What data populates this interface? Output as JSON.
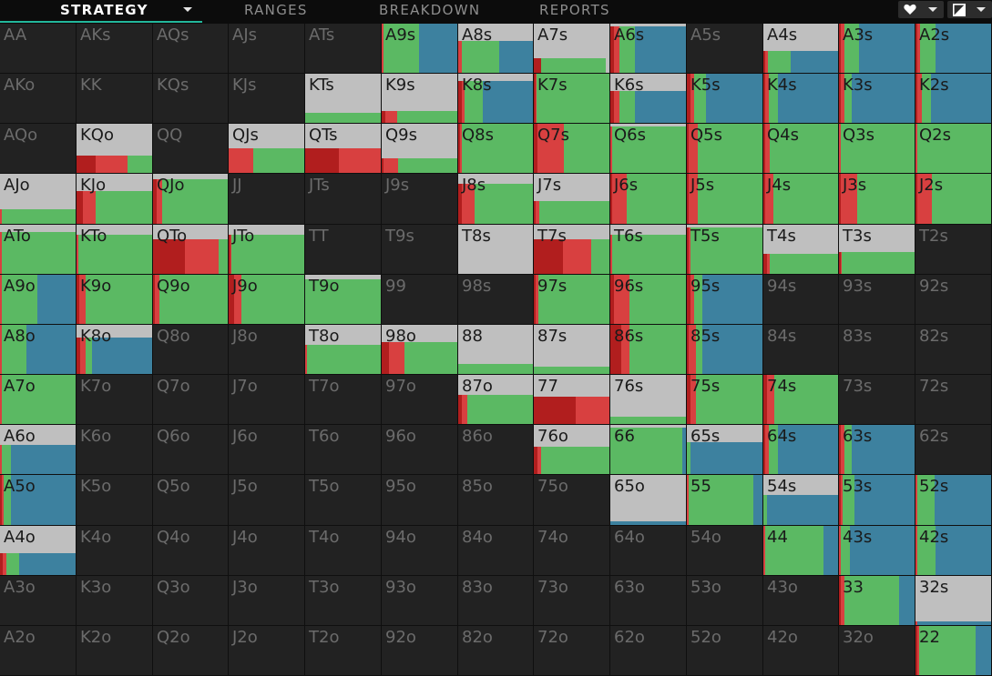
{
  "nav": {
    "tabs": [
      {
        "label": "STRATEGY",
        "active": true
      },
      {
        "label": "RANGES",
        "active": false
      },
      {
        "label": "BREAKDOWN",
        "active": false
      },
      {
        "label": "REPORTS",
        "active": false
      }
    ],
    "right_icons": [
      "heart-icon",
      "chevron-down-icon",
      "contrast-icon",
      "chevron-down-icon"
    ]
  },
  "colors": {
    "cell_bg": "#222222",
    "fold": "#bfbfbf",
    "check": "#5bb963",
    "bet_small": "#d84040",
    "bet_large": "#b11e1e",
    "bet_blue": "#3d819f",
    "label_dark": "#1a1a1a",
    "label_dim": "#6b6b6b"
  },
  "grid": {
    "rows": [
      [
        "AA",
        "AKs",
        "AQs",
        "AJs",
        "ATs",
        "A9s",
        "A8s",
        "A7s",
        "A6s",
        "A5s",
        "A4s",
        "A3s",
        "A2s"
      ],
      [
        "AKo",
        "KK",
        "KQs",
        "KJs",
        "KTs",
        "K9s",
        "K8s",
        "K7s",
        "K6s",
        "K5s",
        "K4s",
        "K3s",
        "K2s"
      ],
      [
        "AQo",
        "KQo",
        "QQ",
        "QJs",
        "QTs",
        "Q9s",
        "Q8s",
        "Q7s",
        "Q6s",
        "Q5s",
        "Q4s",
        "Q3s",
        "Q2s"
      ],
      [
        "AJo",
        "KJo",
        "QJo",
        "JJ",
        "JTs",
        "J9s",
        "J8s",
        "J7s",
        "J6s",
        "J5s",
        "J4s",
        "J3s",
        "J2s"
      ],
      [
        "ATo",
        "KTo",
        "QTo",
        "JTo",
        "TT",
        "T9s",
        "T8s",
        "T7s",
        "T6s",
        "T5s",
        "T4s",
        "T3s",
        "T2s"
      ],
      [
        "A9o",
        "K9o",
        "Q9o",
        "J9o",
        "T9o",
        "99",
        "98s",
        "97s",
        "96s",
        "95s",
        "94s",
        "93s",
        "92s"
      ],
      [
        "A8o",
        "K8o",
        "Q8o",
        "J8o",
        "T8o",
        "98o",
        "88",
        "87s",
        "86s",
        "85s",
        "84s",
        "83s",
        "82s"
      ],
      [
        "A7o",
        "K7o",
        "Q7o",
        "J7o",
        "T7o",
        "97o",
        "87o",
        "77",
        "76s",
        "75s",
        "74s",
        "73s",
        "72s"
      ],
      [
        "A6o",
        "K6o",
        "Q6o",
        "J6o",
        "T6o",
        "96o",
        "86o",
        "76o",
        "66",
        "65s",
        "64s",
        "63s",
        "62s"
      ],
      [
        "A5o",
        "K5o",
        "Q5o",
        "J5o",
        "T5o",
        "95o",
        "85o",
        "75o",
        "65o",
        "55",
        "54s",
        "53s",
        "52s"
      ],
      [
        "A4o",
        "K4o",
        "Q4o",
        "J4o",
        "T4o",
        "94o",
        "84o",
        "74o",
        "64o",
        "54o",
        "44",
        "43s",
        "42s"
      ],
      [
        "A3o",
        "K3o",
        "Q3o",
        "J3o",
        "T3o",
        "93o",
        "83o",
        "73o",
        "63o",
        "53o",
        "43o",
        "33",
        "32s"
      ],
      [
        "A2o",
        "K2o",
        "Q2o",
        "J2o",
        "T2o",
        "92o",
        "82o",
        "72o",
        "62o",
        "52o",
        "42o",
        "32o",
        "22"
      ]
    ],
    "strategies": {
      "A9s": [
        0.0,
        0.0,
        0.0,
        0.03,
        0.47,
        0.5
      ],
      "A8s": [
        0.35,
        0.0,
        0.0,
        0.05,
        0.5,
        0.45
      ],
      "A7s": [
        0.7,
        0.05,
        0.1,
        0.0,
        0.85,
        0.0
      ],
      "A6s": [
        0.05,
        0.05,
        0.05,
        0.07,
        0.2,
        0.68
      ],
      "A4s": [
        0.55,
        0.0,
        0.02,
        0.04,
        0.31,
        0.63
      ],
      "A3s": [
        0.0,
        0.0,
        0.02,
        0.05,
        0.2,
        0.73
      ],
      "A2s": [
        0.0,
        0.0,
        0.02,
        0.04,
        0.2,
        0.74
      ],
      "KTs": [
        0.8,
        0.0,
        0.0,
        0.0,
        1.0,
        0.0
      ],
      "K9s": [
        0.75,
        0.0,
        0.05,
        0.15,
        0.8,
        0.0
      ],
      "K8s": [
        0.15,
        0.0,
        0.05,
        0.03,
        0.25,
        0.67
      ],
      "K7s": [
        0.0,
        0.0,
        0.02,
        0.02,
        0.96,
        0.0
      ],
      "K6s": [
        0.35,
        0.0,
        0.05,
        0.07,
        0.2,
        0.68
      ],
      "K5s": [
        0.0,
        0.0,
        0.05,
        0.05,
        0.15,
        0.75
      ],
      "K4s": [
        0.0,
        0.0,
        0.02,
        0.05,
        0.13,
        0.8
      ],
      "K3s": [
        0.0,
        0.0,
        0.02,
        0.05,
        0.1,
        0.83
      ],
      "K2s": [
        0.0,
        0.0,
        0.02,
        0.06,
        0.12,
        0.8
      ],
      "KQo": [
        0.65,
        0.0,
        0.25,
        0.42,
        0.33,
        0.0
      ],
      "QJs": [
        0.5,
        0.0,
        0.0,
        0.33,
        0.67,
        0.0
      ],
      "QTs": [
        0.5,
        0.0,
        0.45,
        0.55,
        0.0,
        0.0
      ],
      "Q9s": [
        0.7,
        0.0,
        0.02,
        0.2,
        0.78,
        0.0
      ],
      "Q8s": [
        0.0,
        0.0,
        0.03,
        0.02,
        0.95,
        0.0
      ],
      "Q7s": [
        0.0,
        0.0,
        0.05,
        0.35,
        0.6,
        0.0
      ],
      "Q6s": [
        0.05,
        0.0,
        0.0,
        0.02,
        0.98,
        0.0
      ],
      "Q5s": [
        0.0,
        0.0,
        0.03,
        0.12,
        0.85,
        0.0
      ],
      "Q4s": [
        0.0,
        0.0,
        0.02,
        0.06,
        0.92,
        0.0
      ],
      "Q3s": [
        0.0,
        0.0,
        0.0,
        0.02,
        0.98,
        0.0
      ],
      "Q2s": [
        0.0,
        0.0,
        0.0,
        0.02,
        0.98,
        0.0
      ],
      "AJo": [
        0.7,
        0.0,
        0.0,
        0.02,
        0.98,
        0.0
      ],
      "KJo": [
        0.35,
        0.0,
        0.08,
        0.17,
        0.75,
        0.0
      ],
      "QJo": [
        0.1,
        0.0,
        0.05,
        0.07,
        0.88,
        0.0
      ],
      "J8s": [
        0.2,
        0.0,
        0.05,
        0.17,
        0.78,
        0.0
      ],
      "J7s": [
        0.55,
        0.0,
        0.02,
        0.05,
        0.93,
        0.0
      ],
      "J6s": [
        0.0,
        0.0,
        0.02,
        0.2,
        0.78,
        0.0
      ],
      "J5s": [
        0.0,
        0.0,
        0.02,
        0.13,
        0.85,
        0.0
      ],
      "J4s": [
        0.0,
        0.0,
        0.02,
        0.12,
        0.86,
        0.0
      ],
      "J3s": [
        0.0,
        0.0,
        0.02,
        0.22,
        0.76,
        0.0
      ],
      "J2s": [
        0.0,
        0.0,
        0.02,
        0.2,
        0.78,
        0.0
      ],
      "ATo": [
        0.15,
        0.0,
        0.0,
        0.02,
        0.98,
        0.0
      ],
      "KTo": [
        0.2,
        0.0,
        0.0,
        0.02,
        0.98,
        0.0
      ],
      "QTo": [
        0.3,
        0.0,
        0.43,
        0.45,
        0.12,
        0.0
      ],
      "JTo": [
        0.2,
        0.0,
        0.02,
        0.02,
        0.96,
        0.0
      ],
      "T8s": [
        1.0,
        0.0,
        0.0,
        0.0,
        1.0,
        0.0
      ],
      "T7s": [
        0.3,
        0.0,
        0.38,
        0.38,
        0.24,
        0.0
      ],
      "T6s": [
        0.2,
        0.0,
        0.0,
        0.02,
        0.98,
        0.0
      ],
      "T5s": [
        0.05,
        0.0,
        0.02,
        0.03,
        0.95,
        0.0
      ],
      "T4s": [
        0.6,
        0.0,
        0.05,
        0.03,
        0.92,
        0.0
      ],
      "T3s": [
        0.55,
        0.0,
        0.02,
        0.02,
        0.96,
        0.0
      ],
      "A9o": [
        0.0,
        0.0,
        0.0,
        0.02,
        0.48,
        0.5
      ],
      "K9o": [
        0.0,
        0.0,
        0.04,
        0.08,
        0.88,
        0.0
      ],
      "Q9o": [
        0.0,
        0.0,
        0.02,
        0.07,
        0.91,
        0.0
      ],
      "J9o": [
        0.0,
        0.0,
        0.07,
        0.1,
        0.83,
        0.0
      ],
      "T9o": [
        0.1,
        0.0,
        0.0,
        0.0,
        1.0,
        0.0
      ],
      "97s": [
        0.0,
        0.0,
        0.02,
        0.04,
        0.94,
        0.0
      ],
      "96s": [
        0.0,
        0.0,
        0.05,
        0.2,
        0.75,
        0.0
      ],
      "95s": [
        0.0,
        0.0,
        0.05,
        0.05,
        0.1,
        0.8
      ],
      "A8o": [
        0.0,
        0.0,
        0.0,
        0.03,
        0.32,
        0.65
      ],
      "K8o": [
        0.25,
        0.0,
        0.05,
        0.07,
        0.08,
        0.8
      ],
      "T8o": [
        0.4,
        0.0,
        0.0,
        0.02,
        0.98,
        0.0
      ],
      "98o": [
        0.35,
        0.0,
        0.1,
        0.2,
        0.7,
        0.0
      ],
      "88": [
        0.8,
        0.0,
        0.0,
        0.0,
        1.0,
        0.0
      ],
      "87s": [
        0.85,
        0.0,
        0.0,
        0.0,
        1.0,
        0.0
      ],
      "86s": [
        0.0,
        0.0,
        0.15,
        0.1,
        0.75,
        0.0
      ],
      "85s": [
        0.0,
        0.0,
        0.02,
        0.1,
        0.08,
        0.8
      ],
      "A7o": [
        0.0,
        0.0,
        0.0,
        0.02,
        0.98,
        0.0
      ],
      "87o": [
        0.4,
        0.0,
        0.05,
        0.07,
        0.88,
        0.0
      ],
      "77": [
        0.45,
        0.0,
        0.55,
        0.45,
        0.0,
        0.0
      ],
      "76s": [
        0.85,
        0.0,
        0.0,
        0.0,
        1.0,
        0.0
      ],
      "75s": [
        0.0,
        0.0,
        0.05,
        0.07,
        0.88,
        0.0
      ],
      "74s": [
        0.0,
        0.0,
        0.05,
        0.1,
        0.85,
        0.0
      ],
      "A6o": [
        0.4,
        0.0,
        0.0,
        0.02,
        0.12,
        0.86
      ],
      "76o": [
        0.45,
        0.0,
        0.05,
        0.05,
        0.9,
        0.0
      ],
      "66": [
        0.05,
        0.0,
        0.0,
        0.0,
        0.95,
        0.05
      ],
      "65s": [
        0.35,
        0.0,
        0.0,
        0.0,
        0.05,
        0.95
      ],
      "64s": [
        0.0,
        0.0,
        0.02,
        0.05,
        0.13,
        0.8
      ],
      "63s": [
        0.0,
        0.0,
        0.02,
        0.05,
        0.1,
        0.83
      ],
      "A5o": [
        0.0,
        0.0,
        0.02,
        0.03,
        0.1,
        0.85
      ],
      "65o": [
        0.92,
        0.0,
        0.0,
        0.0,
        0.0,
        1.0
      ],
      "55": [
        0.0,
        0.0,
        0.0,
        0.03,
        0.85,
        0.12
      ],
      "54s": [
        0.4,
        0.0,
        0.0,
        0.0,
        0.05,
        0.95
      ],
      "53s": [
        0.0,
        0.0,
        0.02,
        0.03,
        0.15,
        0.8
      ],
      "52s": [
        0.0,
        0.0,
        0.0,
        0.02,
        0.23,
        0.75
      ],
      "A4o": [
        0.55,
        0.0,
        0.04,
        0.04,
        0.17,
        0.75
      ],
      "44": [
        0.0,
        0.0,
        0.0,
        0.02,
        0.78,
        0.2
      ],
      "43s": [
        0.0,
        0.0,
        0.0,
        0.03,
        0.12,
        0.85
      ],
      "42s": [
        0.0,
        0.0,
        0.0,
        0.02,
        0.25,
        0.73
      ],
      "33": [
        0.0,
        0.0,
        0.02,
        0.05,
        0.73,
        0.2
      ],
      "32s": [
        0.92,
        0.0,
        0.0,
        0.02,
        0.0,
        0.98
      ],
      "22": [
        0.0,
        0.0,
        0.02,
        0.03,
        0.75,
        0.2
      ]
    }
  }
}
